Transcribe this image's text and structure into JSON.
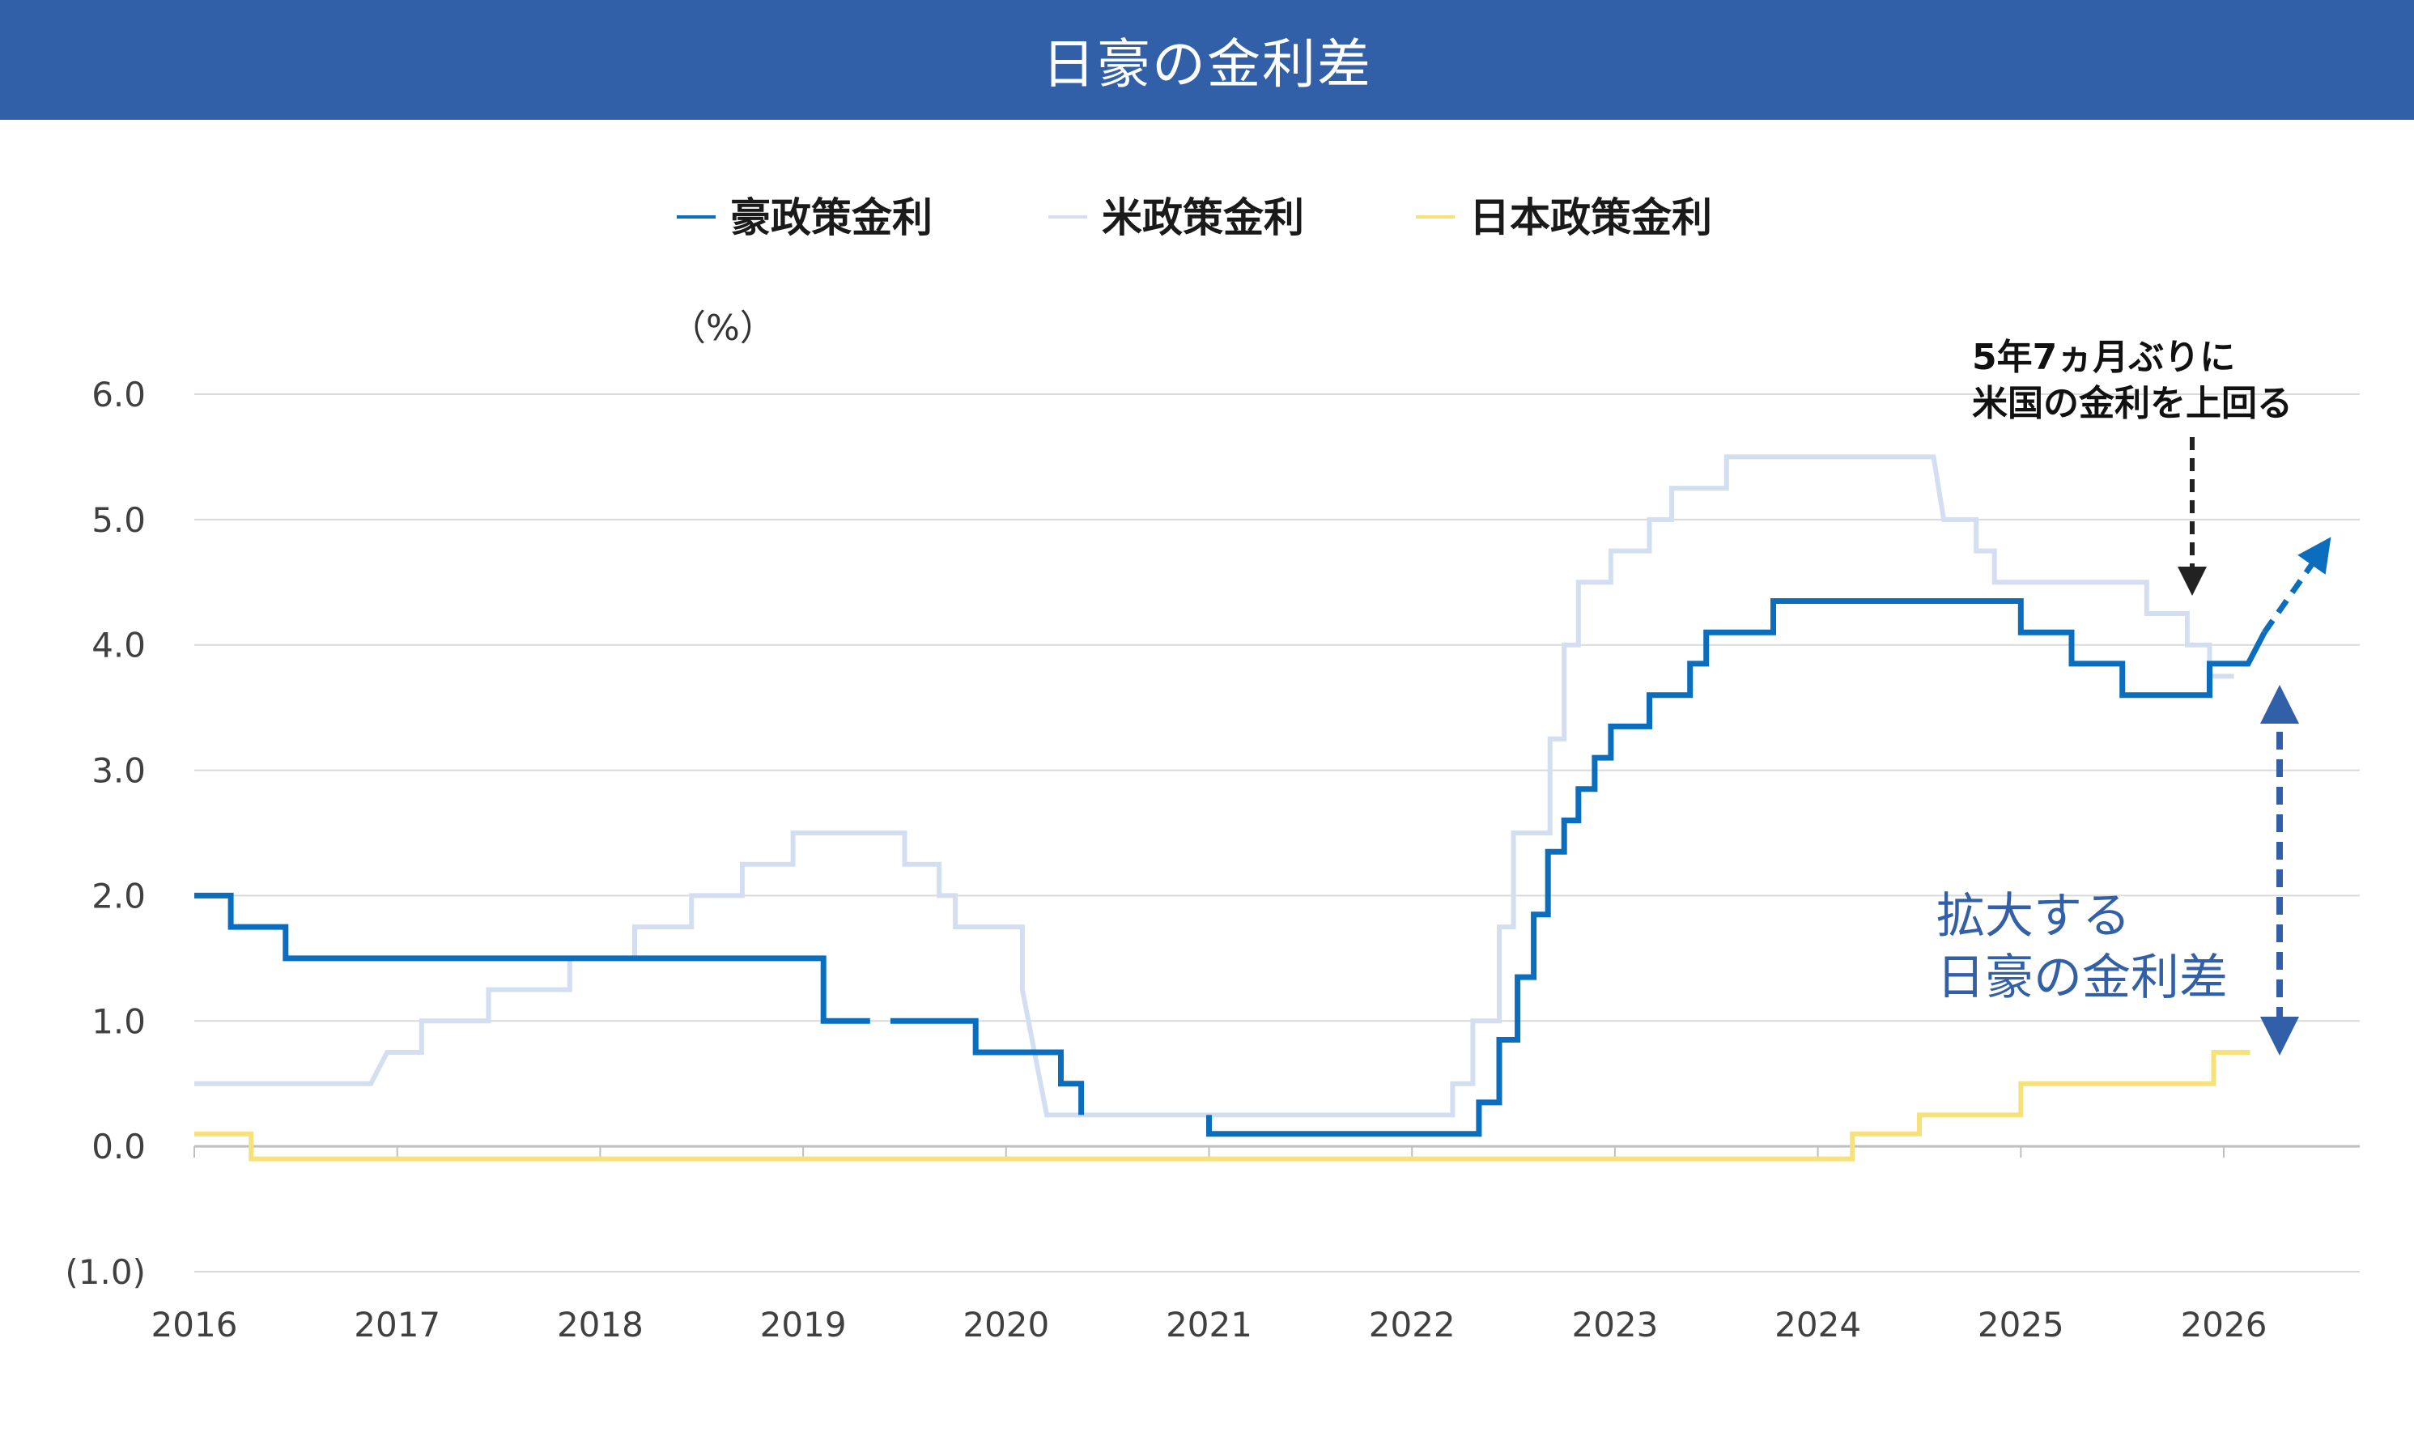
{
  "title": "日豪の金利差",
  "legend": [
    {
      "label": "豪政策金利",
      "color": "#0b6dbd"
    },
    {
      "label": "米政策金利",
      "color": "#d3dff0"
    },
    {
      "label": "日本政策金利",
      "color": "#f7e17a"
    }
  ],
  "annotations": {
    "us_cross_line1": "5年7ヵ月ぶりに",
    "us_cross_line2": "米国の金利を上回る",
    "spread_line1": "拡大する",
    "spread_line2": "日豪の金利差"
  },
  "chart_data": {
    "type": "line",
    "step": true,
    "ylabel": "（%）",
    "ylim": [
      -1.0,
      6.0
    ],
    "yticks": [
      {
        "value": 6.0,
        "label": "6.0"
      },
      {
        "value": 5.0,
        "label": "5.0"
      },
      {
        "value": 4.0,
        "label": "4.0"
      },
      {
        "value": 3.0,
        "label": "3.0"
      },
      {
        "value": 2.0,
        "label": "2.0"
      },
      {
        "value": 1.0,
        "label": "1.0"
      },
      {
        "value": 0.0,
        "label": "0.0"
      },
      {
        "value": -1.0,
        "label": "(1.0)",
        "color": "#e00000"
      }
    ],
    "xlim": [
      2016.0,
      2026.67
    ],
    "xticks": [
      {
        "value": 2016,
        "label": "2016"
      },
      {
        "value": 2017,
        "label": "2017"
      },
      {
        "value": 2018,
        "label": "2018"
      },
      {
        "value": 2019,
        "label": "2019"
      },
      {
        "value": 2020,
        "label": "2020"
      },
      {
        "value": 2021,
        "label": "2021"
      },
      {
        "value": 2022,
        "label": "2022"
      },
      {
        "value": 2023,
        "label": "2023"
      },
      {
        "value": 2024,
        "label": "2024"
      },
      {
        "value": 2025,
        "label": "2025"
      },
      {
        "value": 2026,
        "label": "2026"
      }
    ],
    "grid": true,
    "legend_position": "top-center",
    "series": [
      {
        "name": "米政策金利",
        "color": "#d3dff0",
        "points": [
          [
            2016.0,
            0.5
          ],
          [
            2016.87,
            0.5
          ],
          [
            2016.95,
            0.75
          ],
          [
            2017.12,
            0.75
          ],
          [
            2017.12,
            1.0
          ],
          [
            2017.45,
            1.0
          ],
          [
            2017.45,
            1.25
          ],
          [
            2017.85,
            1.25
          ],
          [
            2017.85,
            1.5
          ],
          [
            2018.17,
            1.5
          ],
          [
            2018.17,
            1.75
          ],
          [
            2018.45,
            1.75
          ],
          [
            2018.45,
            2.0
          ],
          [
            2018.7,
            2.0
          ],
          [
            2018.7,
            2.25
          ],
          [
            2018.95,
            2.25
          ],
          [
            2018.95,
            2.5
          ],
          [
            2019.5,
            2.5
          ],
          [
            2019.5,
            2.25
          ],
          [
            2019.67,
            2.25
          ],
          [
            2019.67,
            2.0
          ],
          [
            2019.75,
            2.0
          ],
          [
            2019.75,
            1.75
          ],
          [
            2020.08,
            1.75
          ],
          [
            2020.08,
            1.25
          ],
          [
            2020.2,
            0.25
          ],
          [
            2022.2,
            0.25
          ],
          [
            2022.2,
            0.5
          ],
          [
            2022.3,
            0.5
          ],
          [
            2022.3,
            1.0
          ],
          [
            2022.43,
            1.0
          ],
          [
            2022.43,
            1.75
          ],
          [
            2022.5,
            1.75
          ],
          [
            2022.5,
            2.5
          ],
          [
            2022.68,
            2.5
          ],
          [
            2022.68,
            3.25
          ],
          [
            2022.75,
            3.25
          ],
          [
            2022.75,
            4.0
          ],
          [
            2022.82,
            4.0
          ],
          [
            2022.82,
            4.5
          ],
          [
            2022.98,
            4.5
          ],
          [
            2022.98,
            4.75
          ],
          [
            2023.17,
            4.75
          ],
          [
            2023.17,
            5.0
          ],
          [
            2023.28,
            5.0
          ],
          [
            2023.28,
            5.25
          ],
          [
            2023.55,
            5.25
          ],
          [
            2023.55,
            5.5
          ],
          [
            2024.57,
            5.5
          ],
          [
            2024.62,
            5.0
          ],
          [
            2024.78,
            5.0
          ],
          [
            2024.78,
            4.75
          ],
          [
            2024.87,
            4.75
          ],
          [
            2024.87,
            4.5
          ],
          [
            2025.62,
            4.5
          ],
          [
            2025.62,
            4.25
          ],
          [
            2025.82,
            4.25
          ],
          [
            2025.82,
            4.0
          ],
          [
            2025.93,
            4.0
          ],
          [
            2025.93,
            3.75
          ],
          [
            2026.05,
            3.75
          ]
        ],
        "dash": false
      },
      {
        "name": "日本政策金利",
        "color": "#f7e17a",
        "points": [
          [
            2016.0,
            0.1
          ],
          [
            2016.28,
            0.1
          ],
          [
            2016.28,
            -0.1
          ],
          [
            2024.17,
            -0.1
          ],
          [
            2024.17,
            0.1
          ],
          [
            2024.5,
            0.1
          ],
          [
            2024.5,
            0.25
          ],
          [
            2025.0,
            0.25
          ],
          [
            2025.0,
            0.5
          ],
          [
            2025.95,
            0.5
          ],
          [
            2025.95,
            0.75
          ],
          [
            2026.13,
            0.75
          ]
        ],
        "dash": false
      },
      {
        "name": "豪政策金利",
        "color": "#0b6dbd",
        "points": [
          [
            2016.0,
            2.0
          ],
          [
            2016.18,
            2.0
          ],
          [
            2016.18,
            1.75
          ],
          [
            2016.45,
            1.75
          ],
          [
            2016.45,
            1.5
          ],
          [
            2019.1,
            1.5
          ],
          [
            2019.1,
            1.0
          ],
          [
            2019.33,
            1.0
          ]
        ],
        "points_b": [
          [
            2019.43,
            1.0
          ],
          [
            2019.85,
            1.0
          ],
          [
            2019.85,
            0.75
          ],
          [
            2020.27,
            0.75
          ],
          [
            2020.27,
            0.5
          ],
          [
            2020.37,
            0.5
          ],
          [
            2020.37,
            0.25
          ]
        ],
        "points_c": [
          [
            2021.0,
            0.25
          ],
          [
            2021.0,
            0.1
          ],
          [
            2022.33,
            0.1
          ],
          [
            2022.33,
            0.35
          ],
          [
            2022.43,
            0.35
          ],
          [
            2022.43,
            0.85
          ],
          [
            2022.52,
            0.85
          ],
          [
            2022.52,
            1.35
          ],
          [
            2022.6,
            1.35
          ],
          [
            2022.6,
            1.85
          ],
          [
            2022.67,
            1.85
          ],
          [
            2022.67,
            2.35
          ],
          [
            2022.75,
            2.35
          ],
          [
            2022.75,
            2.6
          ],
          [
            2022.82,
            2.6
          ],
          [
            2022.82,
            2.85
          ],
          [
            2022.9,
            2.85
          ],
          [
            2022.9,
            3.1
          ],
          [
            2022.98,
            3.1
          ],
          [
            2022.98,
            3.35
          ],
          [
            2023.17,
            3.35
          ],
          [
            2023.17,
            3.6
          ],
          [
            2023.37,
            3.6
          ],
          [
            2023.37,
            3.85
          ],
          [
            2023.45,
            3.85
          ],
          [
            2023.45,
            4.1
          ],
          [
            2023.78,
            4.1
          ],
          [
            2023.78,
            4.35
          ],
          [
            2025.0,
            4.35
          ],
          [
            2025.0,
            4.1
          ],
          [
            2025.25,
            4.1
          ],
          [
            2025.25,
            3.85
          ],
          [
            2025.5,
            3.85
          ],
          [
            2025.5,
            3.6
          ],
          [
            2025.93,
            3.6
          ],
          [
            2025.93,
            3.85
          ],
          [
            2026.12,
            3.85
          ],
          [
            2026.2,
            4.1
          ]
        ],
        "projection": [
          [
            2026.2,
            4.1
          ],
          [
            2026.48,
            4.75
          ]
        ]
      }
    ]
  }
}
